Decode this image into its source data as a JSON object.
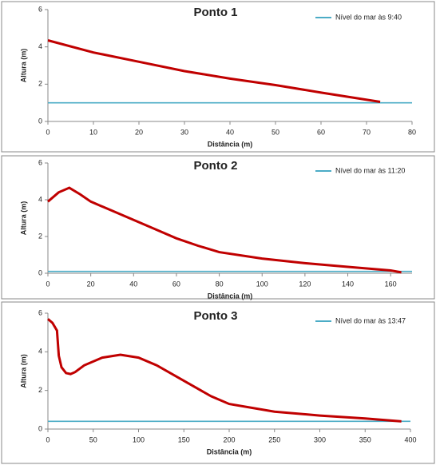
{
  "chart_data": [
    {
      "type": "line",
      "title": "Ponto 1",
      "x_label": "Distância (m)",
      "y_label": "Altura (m)",
      "xlim": [
        0,
        80
      ],
      "ylim": [
        0,
        6
      ],
      "xticks": [
        0,
        10,
        20,
        30,
        40,
        50,
        60,
        70,
        80
      ],
      "yticks": [
        0,
        2,
        4,
        6
      ],
      "series": [
        {
          "name": "Nível do mar às 9:40",
          "color": "#4bacc6",
          "x": [
            0,
            80
          ],
          "values": [
            1,
            1
          ]
        },
        {
          "color": "#c00000",
          "x": [
            0,
            10,
            20,
            30,
            40,
            50,
            60,
            73
          ],
          "values": [
            4.35,
            3.7,
            3.2,
            2.7,
            2.3,
            1.95,
            1.55,
            1.05
          ]
        }
      ]
    },
    {
      "type": "line",
      "title": "Ponto 2",
      "x_label": "Distância (m)",
      "y_label": "Altura (m)",
      "xlim": [
        0,
        170
      ],
      "ylim": [
        0,
        6
      ],
      "xticks": [
        0,
        20,
        40,
        60,
        80,
        100,
        120,
        140,
        160
      ],
      "yticks": [
        0,
        2,
        4,
        6
      ],
      "series": [
        {
          "name": "Nível do mar às 11:20",
          "color": "#4bacc6",
          "x": [
            0,
            170
          ],
          "values": [
            0.1,
            0.1
          ]
        },
        {
          "color": "#c00000",
          "x": [
            0,
            5,
            10,
            15,
            20,
            30,
            40,
            50,
            60,
            70,
            80,
            100,
            120,
            140,
            160,
            165
          ],
          "values": [
            3.9,
            4.4,
            4.65,
            4.3,
            3.9,
            3.4,
            2.9,
            2.4,
            1.9,
            1.5,
            1.15,
            0.8,
            0.55,
            0.35,
            0.15,
            0.05
          ]
        }
      ]
    },
    {
      "type": "line",
      "title": "Ponto 3",
      "x_label": "Distância (m)",
      "y_label": "Altura (m)",
      "xlim": [
        0,
        400
      ],
      "ylim": [
        0,
        6
      ],
      "xticks": [
        0,
        50,
        100,
        150,
        200,
        250,
        300,
        350,
        400
      ],
      "yticks": [
        0,
        2,
        4,
        6
      ],
      "series": [
        {
          "name": "Nível do mar às 13:47",
          "color": "#4bacc6",
          "x": [
            0,
            400
          ],
          "values": [
            0.4,
            0.4
          ]
        },
        {
          "color": "#c00000",
          "x": [
            0,
            5,
            10,
            12,
            15,
            20,
            25,
            30,
            40,
            60,
            80,
            100,
            120,
            150,
            180,
            200,
            250,
            300,
            350,
            390
          ],
          "values": [
            5.7,
            5.5,
            5.1,
            3.8,
            3.2,
            2.9,
            2.85,
            2.95,
            3.3,
            3.7,
            3.85,
            3.7,
            3.3,
            2.5,
            1.7,
            1.3,
            0.9,
            0.7,
            0.55,
            0.4
          ]
        }
      ]
    }
  ]
}
